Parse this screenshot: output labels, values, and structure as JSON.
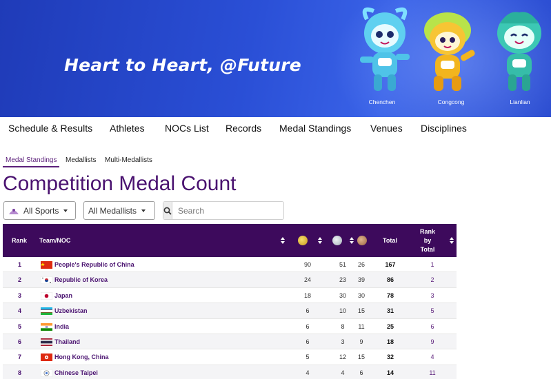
{
  "banner": {
    "slogan": "Heart to Heart, @Future",
    "mascots": [
      {
        "name": "Chenchen",
        "icon": "mascot-chenchen-icon",
        "color": "#4fc3e8"
      },
      {
        "name": "Congcong",
        "icon": "mascot-congcong-icon",
        "color": "#f2b51e"
      },
      {
        "name": "Lianlian",
        "icon": "mascot-lianlian-icon",
        "color": "#3cc8b4"
      }
    ]
  },
  "nav": {
    "items": [
      "Schedule & Results",
      "Athletes",
      "NOCs List",
      "Records",
      "Medal Standings",
      "Venues",
      "Disciplines"
    ]
  },
  "subtabs": {
    "items": [
      "Medal Standings",
      "Medallists",
      "Multi-Medallists"
    ],
    "active": "Medal Standings"
  },
  "page": {
    "title": "Competition Medal Count"
  },
  "filters": {
    "sports_label": "All Sports",
    "medallists_label": "All Medallists",
    "search_placeholder": "Search"
  },
  "table": {
    "headers": {
      "rank": "Rank",
      "team": "Team/NOC",
      "gold": "gold-medal-icon",
      "silver": "silver-medal-icon",
      "bronze": "bronze-medal-icon",
      "total": "Total",
      "rank_by_total": "Rank by Total"
    },
    "rows": [
      {
        "rank": "1",
        "flag": "china-flag-icon",
        "team": "People's Republic of China",
        "gold": "90",
        "silver": "51",
        "bronze": "26",
        "total": "167",
        "rank_by_total": "1"
      },
      {
        "rank": "2",
        "flag": "korea-flag-icon",
        "team": "Republic of Korea",
        "gold": "24",
        "silver": "23",
        "bronze": "39",
        "total": "86",
        "rank_by_total": "2"
      },
      {
        "rank": "3",
        "flag": "japan-flag-icon",
        "team": "Japan",
        "gold": "18",
        "silver": "30",
        "bronze": "30",
        "total": "78",
        "rank_by_total": "3"
      },
      {
        "rank": "4",
        "flag": "uzbekistan-flag-icon",
        "team": "Uzbekistan",
        "gold": "6",
        "silver": "10",
        "bronze": "15",
        "total": "31",
        "rank_by_total": "5"
      },
      {
        "rank": "5",
        "flag": "india-flag-icon",
        "team": "India",
        "gold": "6",
        "silver": "8",
        "bronze": "11",
        "total": "25",
        "rank_by_total": "6"
      },
      {
        "rank": "6",
        "flag": "thailand-flag-icon",
        "team": "Thailand",
        "gold": "6",
        "silver": "3",
        "bronze": "9",
        "total": "18",
        "rank_by_total": "9"
      },
      {
        "rank": "7",
        "flag": "hongkong-flag-icon",
        "team": "Hong Kong, China",
        "gold": "5",
        "silver": "12",
        "bronze": "15",
        "total": "32",
        "rank_by_total": "4"
      },
      {
        "rank": "8",
        "flag": "chinese-taipei-flag-icon",
        "team": "Chinese Taipei",
        "gold": "4",
        "silver": "4",
        "bronze": "6",
        "total": "14",
        "rank_by_total": "11"
      }
    ]
  },
  "colors": {
    "header_bg": "#3d0a5c",
    "title": "#4a1270",
    "gold": "#d4a92a",
    "silver": "#b9c2cc",
    "bronze": "#b07a55"
  }
}
